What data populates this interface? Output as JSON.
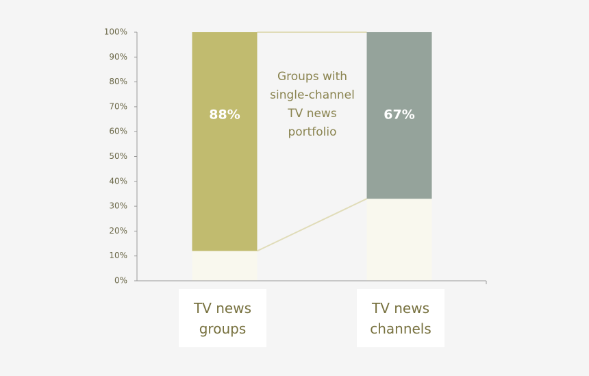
{
  "chart_data": {
    "type": "stacked-bar",
    "categories": [
      "TV news groups",
      "TV news channels"
    ],
    "series": [
      {
        "colors": [
          "#f9f8ee",
          "#f9f8ee"
        ],
        "values": [
          12,
          33
        ]
      },
      {
        "colors": [
          "#c1bb6f",
          "#95a39b"
        ],
        "values": [
          88,
          67
        ],
        "value_labels": [
          "88%",
          "67%"
        ]
      }
    ],
    "annotation": "Groups with single-channel TV news portfolio",
    "ylim": [
      0,
      100
    ],
    "yticks": [
      {
        "value": 0,
        "label": "0%"
      },
      {
        "value": 10,
        "label": "10%"
      },
      {
        "value": 20,
        "label": "20%"
      },
      {
        "value": 30,
        "label": "30%"
      },
      {
        "value": 40,
        "label": "40%"
      },
      {
        "value": 50,
        "label": "50%"
      },
      {
        "value": 60,
        "label": "60%"
      },
      {
        "value": 70,
        "label": "70%"
      },
      {
        "value": 80,
        "label": "80%"
      },
      {
        "value": 90,
        "label": "90%"
      },
      {
        "value": 100,
        "label": "100%"
      }
    ]
  }
}
